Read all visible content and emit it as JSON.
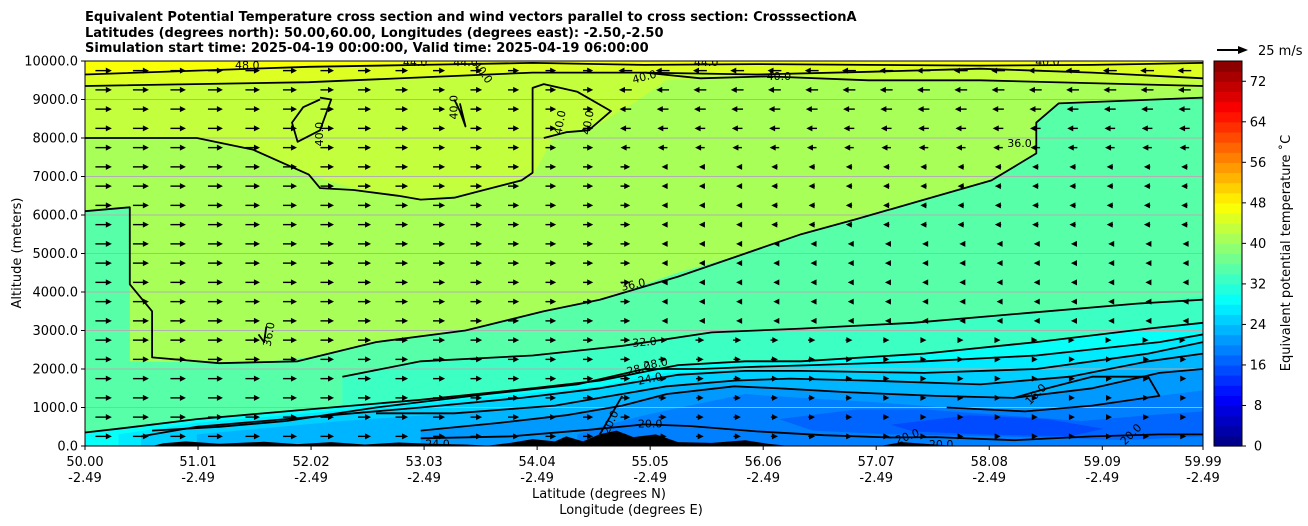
{
  "title_lines": [
    "Equivalent Potential Temperature cross section and wind vectors parallel to cross section: CrosssectionA",
    "Latitudes (degrees north): 50.00,60.00, Longitudes (degrees east): -2.50,-2.50",
    "Simulation start time: 2025-04-19 00:00:00, Valid time: 2025-04-19 06:00:00"
  ],
  "chart_data": {
    "type": "heatmap",
    "xlabel_lines": [
      "Latitude (degrees N)",
      "Longitude (degrees E)"
    ],
    "ylabel": "Altitude (meters)",
    "colorbar_label": "Equivalent potential temperature ˚C",
    "x_ticks": [
      {
        "lat": "50.00",
        "lon": "-2.49"
      },
      {
        "lat": "51.01",
        "lon": "-2.49"
      },
      {
        "lat": "52.02",
        "lon": "-2.49"
      },
      {
        "lat": "53.03",
        "lon": "-2.49"
      },
      {
        "lat": "54.04",
        "lon": "-2.49"
      },
      {
        "lat": "55.05",
        "lon": "-2.49"
      },
      {
        "lat": "56.06",
        "lon": "-2.49"
      },
      {
        "lat": "57.07",
        "lon": "-2.49"
      },
      {
        "lat": "58.08",
        "lon": "-2.49"
      },
      {
        "lat": "59.09",
        "lon": "-2.49"
      },
      {
        "lat": "59.99",
        "lon": "-2.49"
      }
    ],
    "xlim": [
      50.0,
      59.99
    ],
    "y_ticks": [
      "0.0",
      "1000.0",
      "2000.0",
      "3000.0",
      "4000.0",
      "5000.0",
      "6000.0",
      "7000.0",
      "8000.0",
      "9000.0",
      "10000.0"
    ],
    "ylim": [
      0,
      10000
    ],
    "grid": "horizontal",
    "colorbar_ticks": [
      "0",
      "8",
      "16",
      "24",
      "32",
      "40",
      "48",
      "56",
      "64",
      "72"
    ],
    "colorbar_range": [
      0,
      76
    ],
    "colorbar_step": 2,
    "quiver_key_label": "25 m/s",
    "contour_labels": [
      {
        "text": "48.0",
        "lat": 51.45,
        "alt": 9870,
        "rot": 0
      },
      {
        "text": "44.0",
        "lat": 52.95,
        "alt": 9950,
        "rot": 0
      },
      {
        "text": "44.0",
        "lat": 53.4,
        "alt": 9950,
        "rot": 0
      },
      {
        "text": "40.0",
        "lat": 53.55,
        "alt": 9700,
        "rot": 55
      },
      {
        "text": "44.0",
        "lat": 55.55,
        "alt": 9950,
        "rot": 0
      },
      {
        "text": "40.0",
        "lat": 56.2,
        "alt": 9580,
        "rot": 0
      },
      {
        "text": "40.0",
        "lat": 55.0,
        "alt": 9570,
        "rot": -15
      },
      {
        "text": "40.0",
        "lat": 58.6,
        "alt": 9960,
        "rot": 0
      },
      {
        "text": "40.0",
        "lat": 53.3,
        "alt": 8800,
        "rot": -90
      },
      {
        "text": "40.0",
        "lat": 52.1,
        "alt": 8100,
        "rot": -90
      },
      {
        "text": "40.0",
        "lat": 54.25,
        "alt": 8400,
        "rot": -80
      },
      {
        "text": "40.0",
        "lat": 54.5,
        "alt": 8400,
        "rot": -80
      },
      {
        "text": "36.0",
        "lat": 58.35,
        "alt": 7850,
        "rot": 0
      },
      {
        "text": "36.0",
        "lat": 54.9,
        "alt": 4170,
        "rot": -12
      },
      {
        "text": "36.0",
        "lat": 51.65,
        "alt": 2900,
        "rot": -80
      },
      {
        "text": "32.0",
        "lat": 55.0,
        "alt": 2680,
        "rot": -5
      },
      {
        "text": "28.0",
        "lat": 55.1,
        "alt": 2120,
        "rot": -10
      },
      {
        "text": "28.0",
        "lat": 54.95,
        "alt": 1990,
        "rot": -15
      },
      {
        "text": "24.0",
        "lat": 55.05,
        "alt": 1730,
        "rot": -12
      },
      {
        "text": "16.0",
        "lat": 58.5,
        "alt": 1330,
        "rot": -45
      },
      {
        "text": "20.0",
        "lat": 55.05,
        "alt": 560,
        "rot": 0
      },
      {
        "text": "20.0",
        "lat": 54.7,
        "alt": 610,
        "rot": -65
      },
      {
        "text": "24.0",
        "lat": 53.15,
        "alt": 40,
        "rot": 0
      },
      {
        "text": "20.0",
        "lat": 57.35,
        "alt": 230,
        "rot": -20
      },
      {
        "text": "20.0",
        "lat": 57.65,
        "alt": 30,
        "rot": 0
      },
      {
        "text": "20.0",
        "lat": 59.35,
        "alt": 290,
        "rot": -45
      }
    ]
  },
  "colors": {
    "colormap": "jet",
    "contour_line": "#000000",
    "terrain": "#000000",
    "grid": "#b0b0b0"
  }
}
